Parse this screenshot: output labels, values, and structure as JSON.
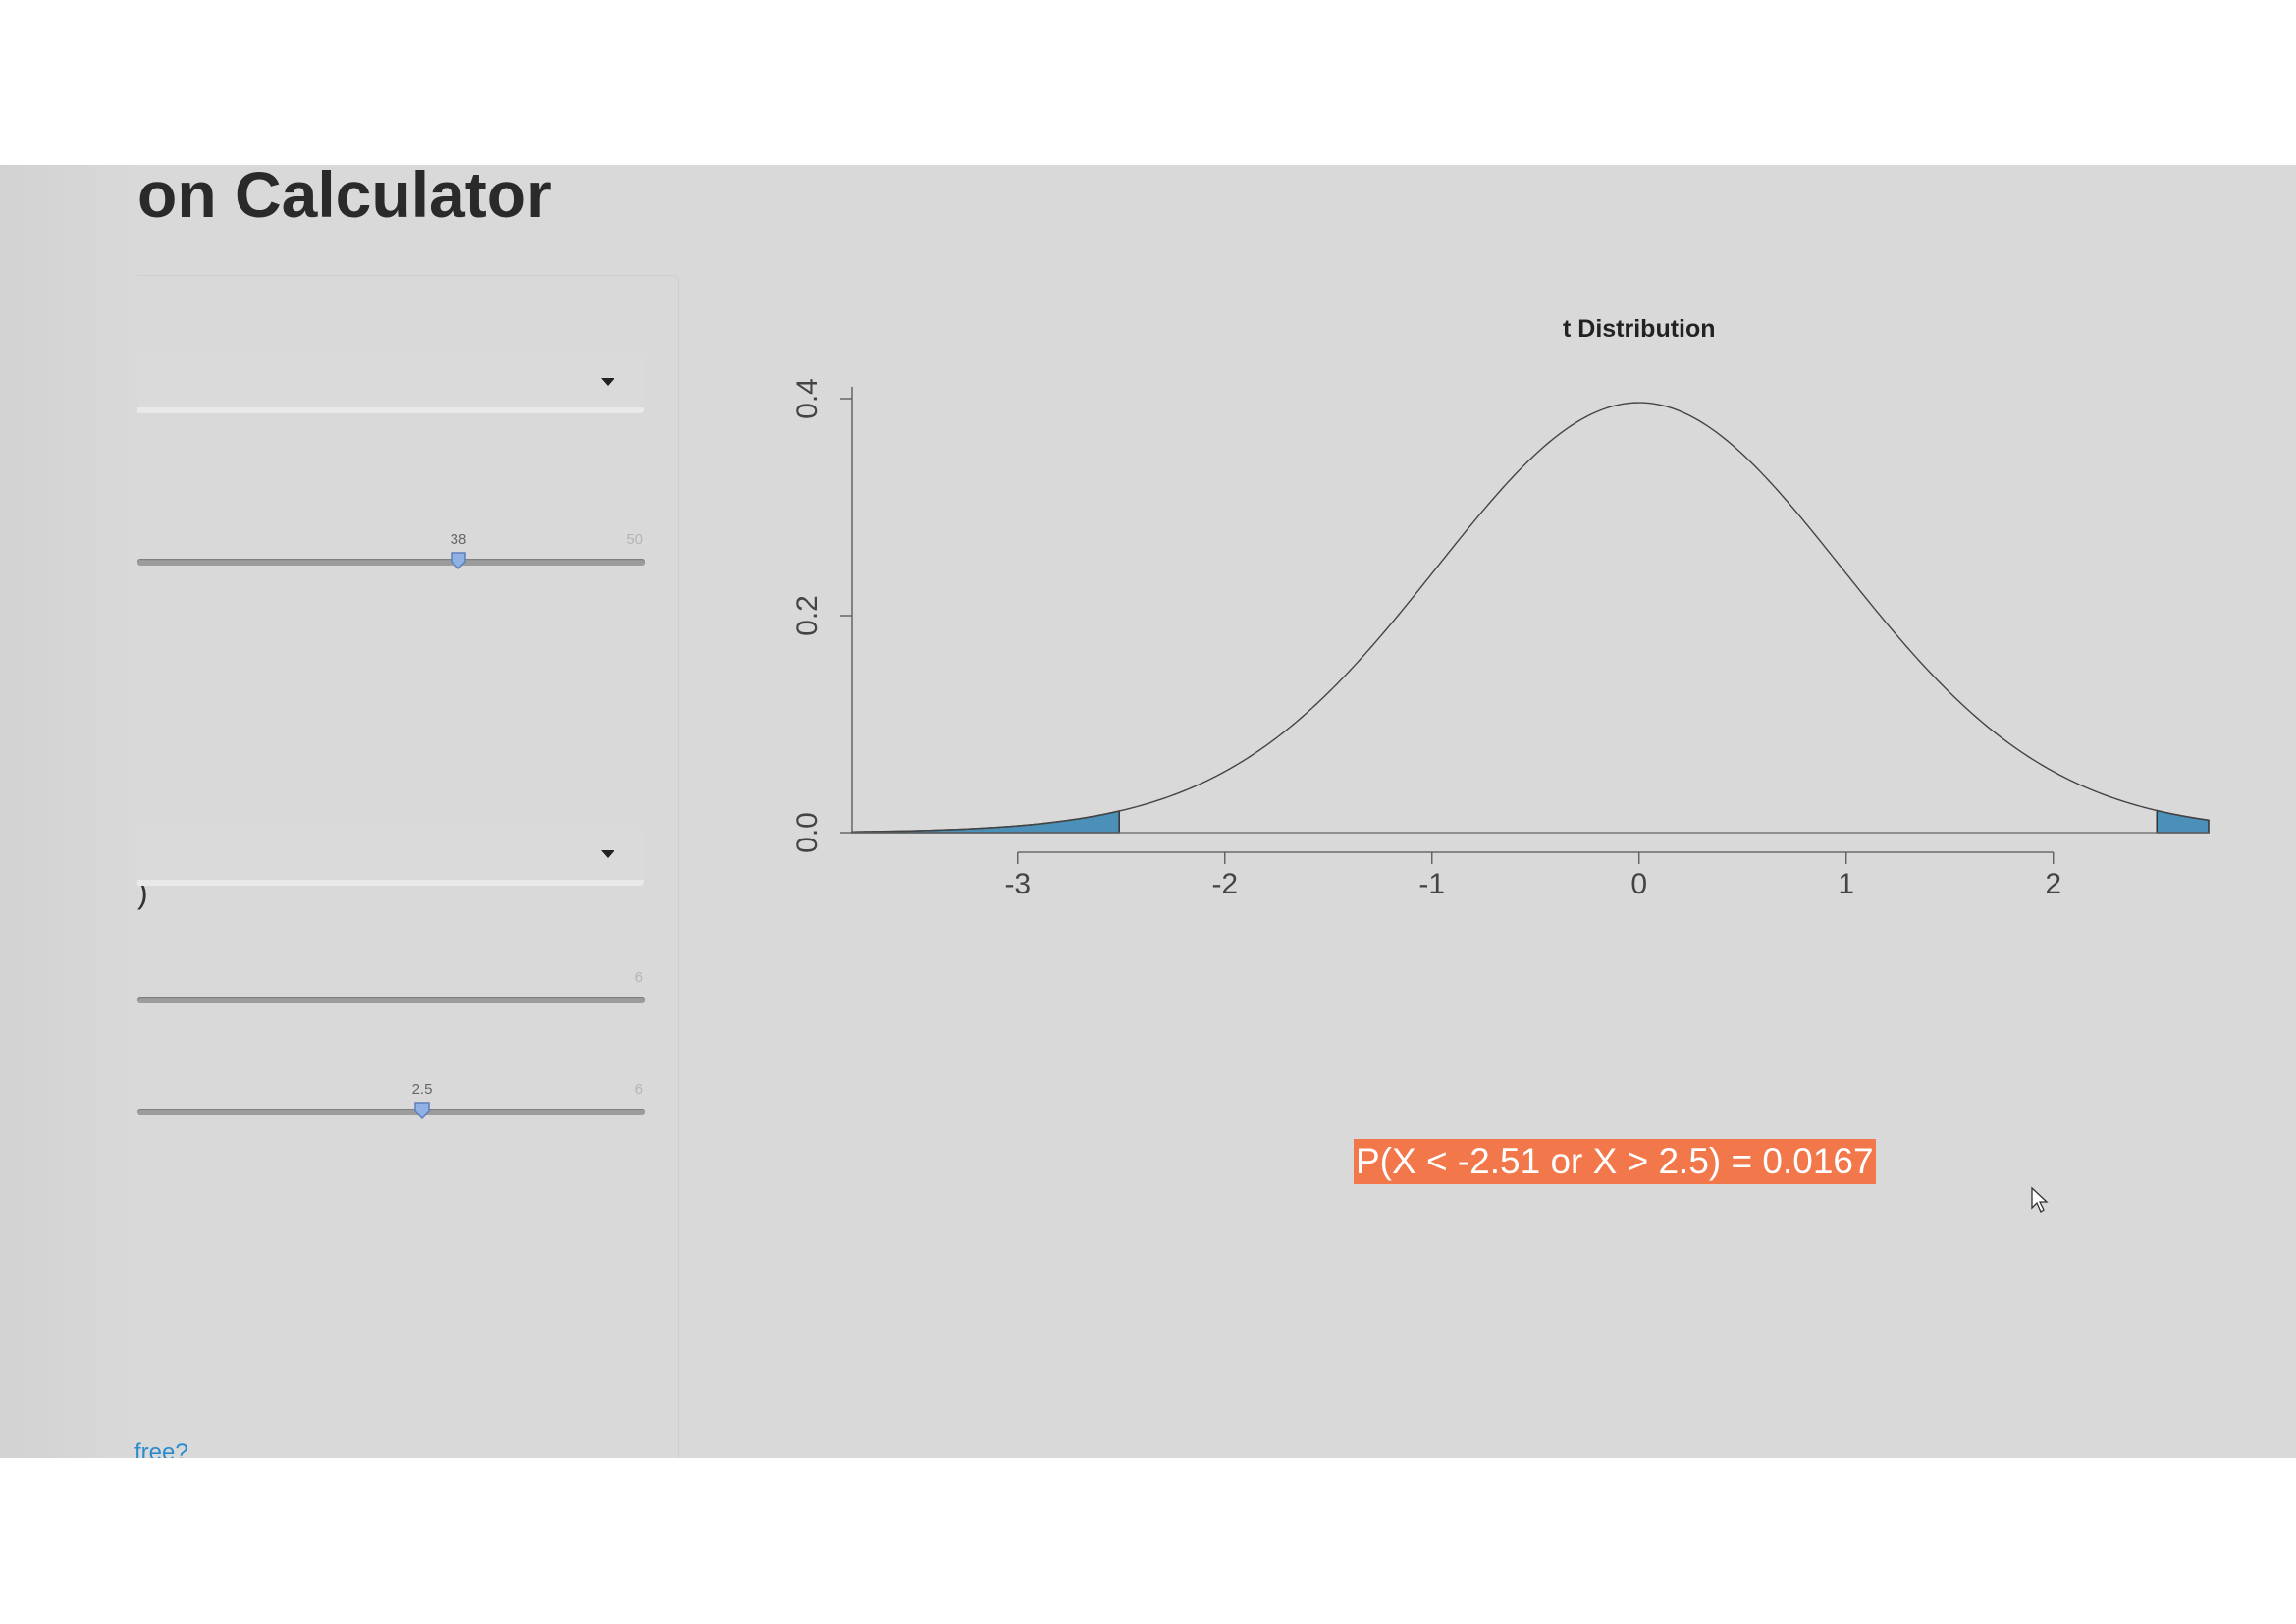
{
  "header": {
    "title": "on Calculator"
  },
  "sidebar": {
    "distribution_select": {
      "value": ""
    },
    "df_slider": {
      "value": 38,
      "value_label": "38",
      "max": 50,
      "max_label": "50"
    },
    "paren_text": ")",
    "type_select": {
      "value": ""
    },
    "lower_slider": {
      "max": 6,
      "max_label": "6"
    },
    "upper_slider": {
      "value": 2.5,
      "value_label": "2.5",
      "max": 6,
      "max_label": "6"
    },
    "link_text": "free?"
  },
  "chart_data": {
    "type": "area",
    "title": "t Distribution",
    "xlabel": "",
    "ylabel": "",
    "df": 38,
    "xlim": [
      -3.8,
      2.75
    ],
    "ylim": [
      0,
      0.4
    ],
    "x_ticks": [
      -3,
      -2,
      -1,
      0,
      1,
      2
    ],
    "x_tick_labels": [
      "-3",
      "-2",
      "-1",
      "0",
      "1",
      "2"
    ],
    "y_ticks": [
      0,
      0.2,
      0.4
    ],
    "y_tick_labels": [
      "0.0",
      "0.2",
      "0.4"
    ],
    "shaded_regions": [
      {
        "from": -3.8,
        "to": -2.51
      },
      {
        "from": 2.5,
        "to": 2.75
      }
    ],
    "shade_color": "#4a90b8",
    "line_color": "#444444"
  },
  "result": {
    "probability_text": "P(X < -2.51 or X > 2.5) = 0.0167",
    "badge_color": "#f2784b"
  },
  "fab": {
    "icon": "grid-dots-icon"
  }
}
